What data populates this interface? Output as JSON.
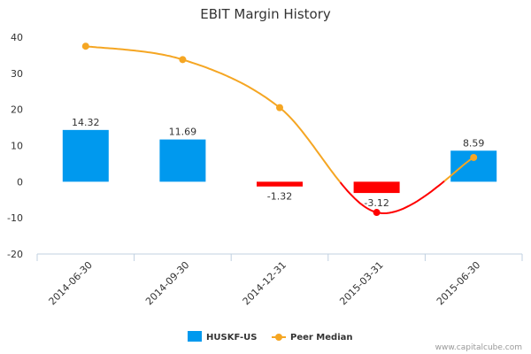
{
  "chart_data": {
    "type": "bar",
    "title": "EBIT Margin History",
    "xlabel": "",
    "ylabel": "",
    "categories": [
      "2014-06-30",
      "2014-09-30",
      "2014-12-31",
      "2015-03-31",
      "2015-06-30"
    ],
    "ylim": [
      -20,
      40
    ],
    "yticks": [
      -20,
      -10,
      0,
      10,
      20,
      30,
      40
    ],
    "grid": false,
    "legend_position": "bottom-center",
    "series": [
      {
        "name": "HUSKF-US",
        "type": "bar",
        "values": [
          14.32,
          11.69,
          -1.32,
          -3.12,
          8.59
        ],
        "labels": [
          "14.32",
          "11.69",
          "-1.32",
          "-3.12",
          "8.59"
        ],
        "positive_color": "#0099ee",
        "negative_color": "#ff0000"
      },
      {
        "name": "Peer Median",
        "type": "line",
        "values": [
          37.5,
          33.8,
          20.5,
          -8.5,
          6.7
        ],
        "positive_color": "#f5a623",
        "negative_color": "#ff0000"
      }
    ]
  },
  "credit": "www.capitalcube.com"
}
